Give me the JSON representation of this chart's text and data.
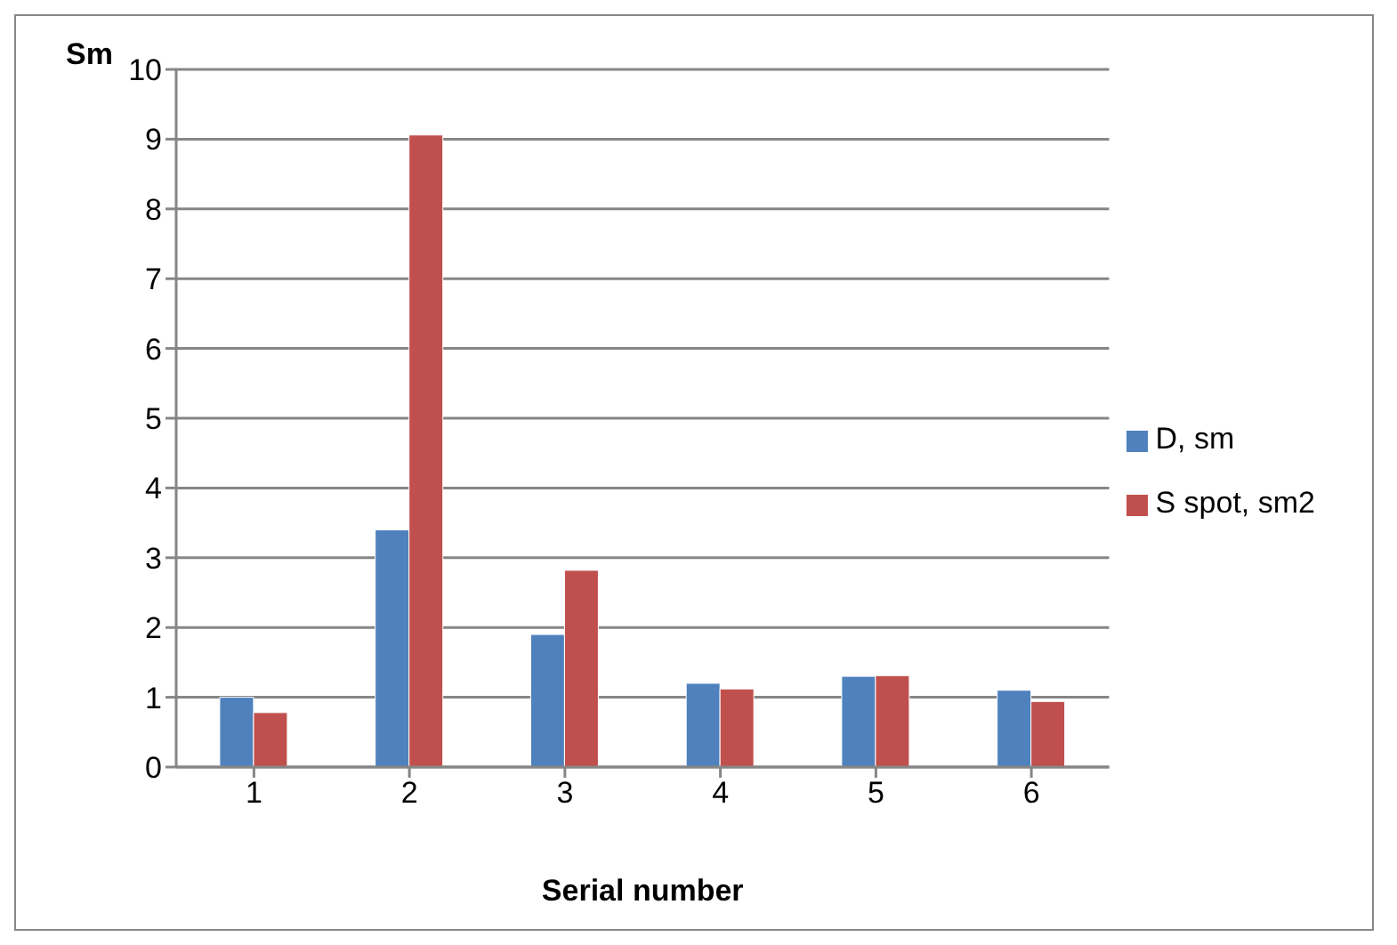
{
  "chart_data": {
    "type": "bar",
    "xlabel": "Serial number",
    "ylabel": "Sm",
    "categories": [
      "1",
      "2",
      "3",
      "4",
      "5",
      "6"
    ],
    "series": [
      {
        "name": "D, sm",
        "color": "#4f81bd",
        "values": [
          1.0,
          3.4,
          1.9,
          1.2,
          1.3,
          1.1
        ]
      },
      {
        "name": "S spot, sm2",
        "color": "#c0504d",
        "values": [
          0.78,
          9.06,
          2.82,
          1.12,
          1.31,
          0.94
        ]
      }
    ],
    "ylim": [
      0,
      10
    ],
    "yticks": [
      0,
      1,
      2,
      3,
      4,
      5,
      6,
      7,
      8,
      9,
      10
    ],
    "grid": "y",
    "legend": "right"
  }
}
